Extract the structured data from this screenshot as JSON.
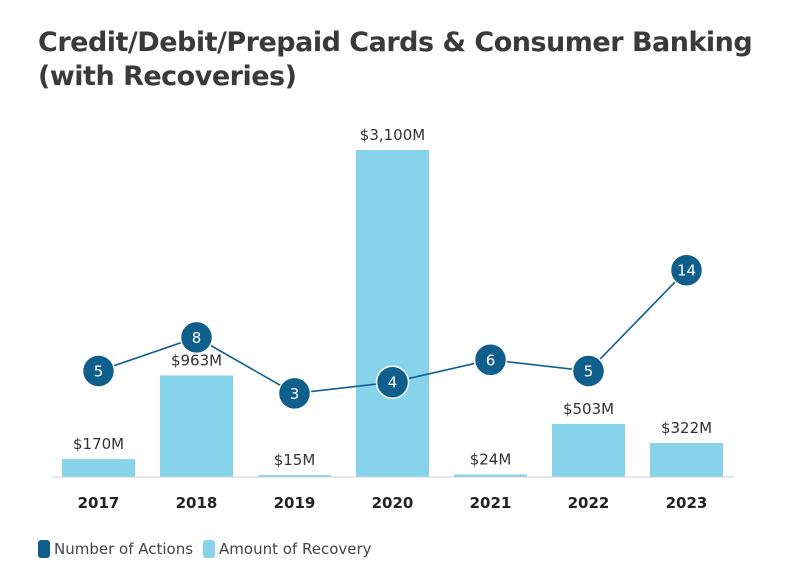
{
  "chart_data": {
    "type": "bar",
    "title": "Credit/Debit/Prepaid Cards & Consumer Banking (with Recoveries)",
    "categories": [
      "2017",
      "2018",
      "2019",
      "2020",
      "2021",
      "2022",
      "2023"
    ],
    "series": [
      {
        "name": "Amount of Recovery",
        "type": "bar",
        "values": [
          170,
          963,
          15,
          3100,
          24,
          503,
          322
        ],
        "labels": [
          "$170M",
          "$963M",
          "$15M",
          "$3,100M",
          "$24M",
          "$503M",
          "$322M"
        ],
        "color": "#87d3eb"
      },
      {
        "name": "Number of Actions",
        "type": "line",
        "values": [
          5,
          8,
          3,
          4,
          6,
          5,
          14
        ],
        "color": "#0f5e8c"
      }
    ],
    "legend_position": "bottom-left",
    "grid": false
  }
}
